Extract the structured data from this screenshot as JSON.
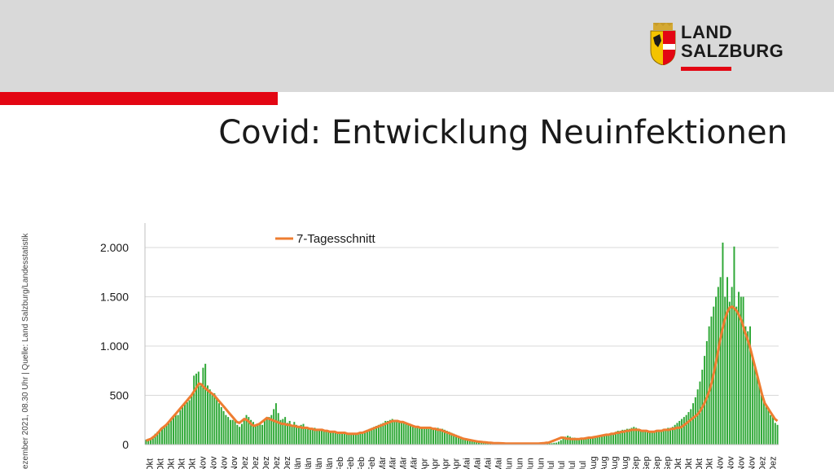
{
  "header": {
    "logo_line1": "LAND",
    "logo_line2": "SALZBURG",
    "title": "Covid: Entwicklung Neuinfektionen"
  },
  "side_note": "ezember 2021, 08.30 Uhr | Quelle: Land Salzburg/Landesstatistik",
  "colors": {
    "red": "#e30613",
    "bar": "#2ea836",
    "line": "#ee7d31",
    "band": "#d9d9d9"
  },
  "chart_data": {
    "type": "bar",
    "title": "",
    "xlabel": "",
    "ylabel": "",
    "ylim": [
      0,
      2000
    ],
    "yticks": [
      0,
      500,
      1000,
      1500,
      2000
    ],
    "ytick_labels": [
      "0",
      "500",
      "1.000",
      "1.500",
      "2.000"
    ],
    "grid": true,
    "legend": {
      "position": "top-left",
      "entries": [
        "7-Tagesschnitt"
      ]
    },
    "x_tick_labels": [
      "Okt",
      "Okt",
      "Okt",
      "Okt",
      "Okt",
      "Nov",
      "Nov",
      "Nov",
      "Nov",
      "Dez",
      "Dez",
      "Dez",
      "Dez",
      "Dez",
      "Jän",
      "Jän",
      "Jän",
      "Jän",
      "Feb",
      "Feb",
      "Feb",
      "Feb",
      "Mär",
      "Mär",
      "Mär",
      "Mär",
      "Apr",
      "Apr",
      "Apr",
      "Apr",
      "Mai",
      "Mai",
      "Mai",
      "Mai",
      "Jun",
      "Jun",
      "Jun",
      "Jun",
      "Jul",
      "Jul",
      "Jul",
      "Jul",
      "Aug",
      "Aug",
      "Aug",
      "Aug",
      "Sep",
      "Sep",
      "Sep",
      "Sep",
      "Okt",
      "Okt",
      "Okt",
      "Okt",
      "Nov",
      "Nov",
      "Nov",
      "Nov",
      "Dez",
      "Dez"
    ],
    "series": [
      {
        "name": "Neuinfektionen",
        "kind": "bar",
        "values": [
          50,
          60,
          60,
          80,
          110,
          130,
          150,
          160,
          180,
          200,
          230,
          260,
          280,
          300,
          300,
          350,
          380,
          420,
          430,
          450,
          500,
          700,
          720,
          740,
          600,
          780,
          820,
          600,
          560,
          500,
          520,
          460,
          420,
          380,
          340,
          300,
          280,
          250,
          250,
          250,
          200,
          180,
          210,
          250,
          300,
          280,
          250,
          230,
          200,
          210,
          210,
          200,
          250,
          260,
          280,
          300,
          360,
          420,
          320,
          250,
          260,
          280,
          220,
          240,
          200,
          230,
          200,
          190,
          200,
          210,
          180,
          170,
          160,
          160,
          170,
          150,
          160,
          150,
          150,
          140,
          140,
          130,
          130,
          130,
          120,
          120,
          110,
          110,
          120,
          110,
          110,
          100,
          110,
          120,
          120,
          130,
          140,
          150,
          160,
          170,
          180,
          190,
          200,
          210,
          220,
          240,
          240,
          250,
          260,
          250,
          240,
          230,
          230,
          220,
          210,
          210,
          200,
          190,
          190,
          180,
          180,
          170,
          160,
          170,
          160,
          170,
          170,
          160,
          170,
          160,
          160,
          150,
          140,
          130,
          120,
          110,
          100,
          90,
          80,
          70,
          60,
          55,
          50,
          45,
          40,
          35,
          30,
          30,
          28,
          25,
          22,
          20,
          18,
          18,
          16,
          15,
          14,
          13,
          12,
          12,
          11,
          10,
          10,
          10,
          10,
          10,
          10,
          10,
          10,
          10,
          10,
          10,
          10,
          10,
          10,
          10,
          10,
          12,
          14,
          18,
          20,
          30,
          45,
          60,
          80,
          90,
          80,
          70,
          70,
          60,
          60,
          55,
          60,
          55,
          60,
          65,
          70,
          70,
          80,
          80,
          90,
          90,
          100,
          110,
          110,
          120,
          130,
          140,
          140,
          150,
          150,
          160,
          160,
          170,
          180,
          170,
          160,
          150,
          150,
          140,
          140,
          130,
          130,
          140,
          140,
          150,
          150,
          160,
          160,
          170,
          170,
          180,
          200,
          220,
          240,
          260,
          280,
          300,
          330,
          360,
          420,
          480,
          560,
          640,
          760,
          900,
          1050,
          1200,
          1300,
          1400,
          1500,
          1600,
          1700,
          2050,
          1500,
          1700,
          1450,
          1600,
          2010,
          1400,
          1550,
          1500,
          1500,
          1200,
          1150,
          1200,
          900,
          800,
          700,
          600,
          500,
          450,
          400,
          350,
          300,
          280,
          220,
          200
        ]
      },
      {
        "name": "7-Tagesschnitt",
        "kind": "line",
        "values": [
          40,
          50,
          60,
          80,
          100,
          130,
          160,
          180,
          200,
          230,
          260,
          290,
          320,
          350,
          380,
          410,
          440,
          470,
          500,
          540,
          580,
          620,
          610,
          580,
          560,
          540,
          520,
          500,
          470,
          440,
          410,
          380,
          350,
          320,
          290,
          260,
          230,
          220,
          240,
          260,
          250,
          230,
          200,
          190,
          200,
          210,
          230,
          250,
          270,
          260,
          250,
          240,
          230,
          220,
          210,
          210,
          200,
          200,
          190,
          190,
          180,
          180,
          170,
          170,
          170,
          160,
          160,
          150,
          150,
          150,
          150,
          140,
          140,
          130,
          130,
          130,
          120,
          120,
          120,
          120,
          110,
          110,
          110,
          110,
          110,
          120,
          120,
          130,
          140,
          150,
          160,
          170,
          180,
          190,
          200,
          210,
          220,
          230,
          240,
          240,
          240,
          230,
          230,
          220,
          210,
          200,
          190,
          180,
          180,
          170,
          170,
          170,
          170,
          170,
          160,
          160,
          150,
          150,
          140,
          130,
          120,
          110,
          100,
          90,
          80,
          70,
          60,
          55,
          50,
          45,
          40,
          35,
          30,
          28,
          25,
          22,
          20,
          18,
          16,
          15,
          14,
          13,
          12,
          11,
          10,
          10,
          10,
          10,
          10,
          10,
          10,
          10,
          10,
          10,
          10,
          10,
          10,
          12,
          14,
          18,
          20,
          30,
          40,
          50,
          60,
          70,
          70,
          60,
          60,
          55,
          55,
          55,
          55,
          60,
          60,
          65,
          70,
          70,
          75,
          80,
          85,
          90,
          95,
          100,
          100,
          110,
          110,
          120,
          120,
          130,
          130,
          140,
          140,
          150,
          150,
          150,
          150,
          140,
          140,
          140,
          130,
          130,
          130,
          140,
          140,
          140,
          150,
          150,
          150,
          160,
          160,
          170,
          170,
          180,
          200,
          220,
          240,
          260,
          280,
          300,
          330,
          370,
          420,
          480,
          550,
          640,
          760,
          890,
          1030,
          1150,
          1260,
          1340,
          1390,
          1400,
          1380,
          1350,
          1300,
          1240,
          1150,
          1080,
          1000,
          900,
          800,
          700,
          600,
          500,
          420,
          380,
          340,
          300,
          260,
          240
        ]
      }
    ]
  }
}
